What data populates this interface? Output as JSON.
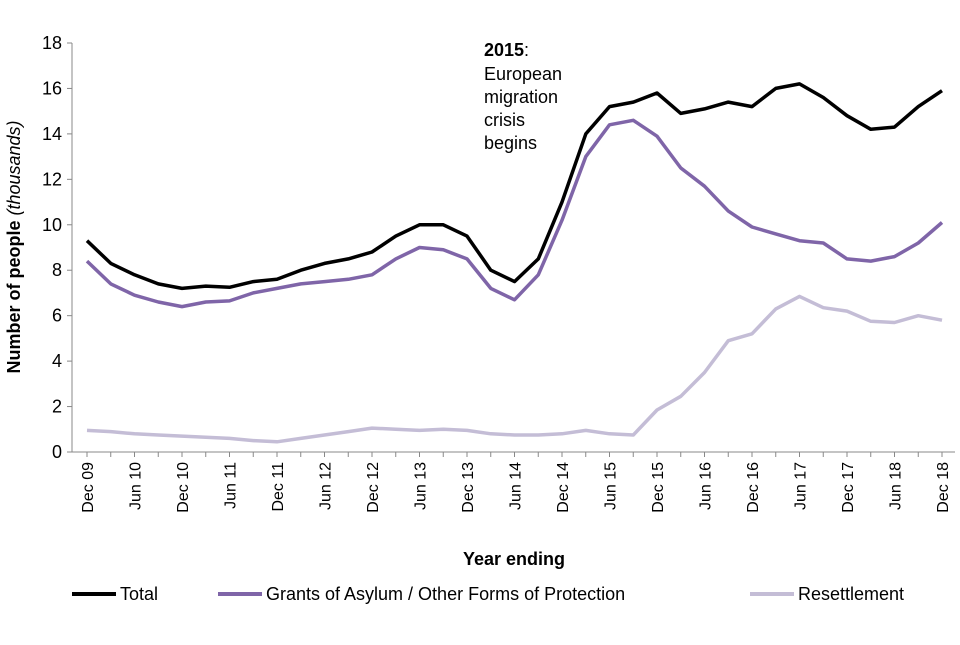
{
  "chart_data": {
    "type": "line",
    "x_label": "Year ending",
    "y_label": "Number of people",
    "y_label_unit": "(thousands)",
    "annotation": {
      "bold": "2015",
      "text": ":",
      "lines": [
        "European",
        "migration",
        "crisis",
        "begins"
      ]
    },
    "categories": [
      "Dec 09",
      null,
      "Jun 10",
      null,
      "Dec 10",
      null,
      "Jun 11",
      null,
      "Dec 11",
      null,
      "Jun 12",
      null,
      "Dec 12",
      null,
      "Jun 13",
      null,
      "Dec 13",
      null,
      "Jun 14",
      null,
      "Dec 14",
      null,
      "Jun 15",
      null,
      "Dec 15",
      null,
      "Jun 16",
      null,
      "Dec 16",
      null,
      "Jun 17",
      null,
      "Dec 17",
      null,
      "Jun 18",
      null,
      "Dec 18"
    ],
    "ylim": [
      0,
      18
    ],
    "yticks": [
      0,
      2,
      4,
      6,
      8,
      10,
      12,
      14,
      16,
      18
    ],
    "series": [
      {
        "name": "Total",
        "color": "#000000",
        "values": [
          9.3,
          8.3,
          7.8,
          7.4,
          7.2,
          7.3,
          7.25,
          7.5,
          7.6,
          8.0,
          8.3,
          8.5,
          8.8,
          9.5,
          10.0,
          10.0,
          9.5,
          8.0,
          7.5,
          8.5,
          11.0,
          14.0,
          15.2,
          15.4,
          15.8,
          14.9,
          15.1,
          15.4,
          15.2,
          16.0,
          16.2,
          15.6,
          14.8,
          14.2,
          14.3,
          15.2,
          15.9
        ]
      },
      {
        "name": "Grants of Asylum / Other Forms of Protection",
        "color": "#7f65a8",
        "values": [
          8.4,
          7.4,
          6.9,
          6.6,
          6.4,
          6.6,
          6.65,
          7.0,
          7.2,
          7.4,
          7.5,
          7.6,
          7.8,
          8.5,
          9.0,
          8.9,
          8.5,
          7.2,
          6.7,
          7.8,
          10.2,
          13.0,
          14.4,
          14.6,
          13.9,
          12.5,
          11.7,
          10.6,
          9.9,
          9.6,
          9.3,
          9.2,
          8.5,
          8.4,
          8.6,
          9.2,
          10.1
        ]
      },
      {
        "name": "Resettlement",
        "color": "#c4bdd6",
        "values": [
          0.95,
          0.9,
          0.8,
          0.75,
          0.7,
          0.65,
          0.6,
          0.5,
          0.45,
          0.6,
          0.75,
          0.9,
          1.05,
          1.0,
          0.95,
          1.0,
          0.95,
          0.8,
          0.75,
          0.75,
          0.8,
          0.95,
          0.8,
          0.75,
          1.85,
          2.45,
          3.5,
          4.9,
          5.2,
          6.3,
          6.85,
          6.35,
          6.2,
          5.75,
          5.7,
          6.0,
          5.8
        ]
      }
    ]
  }
}
